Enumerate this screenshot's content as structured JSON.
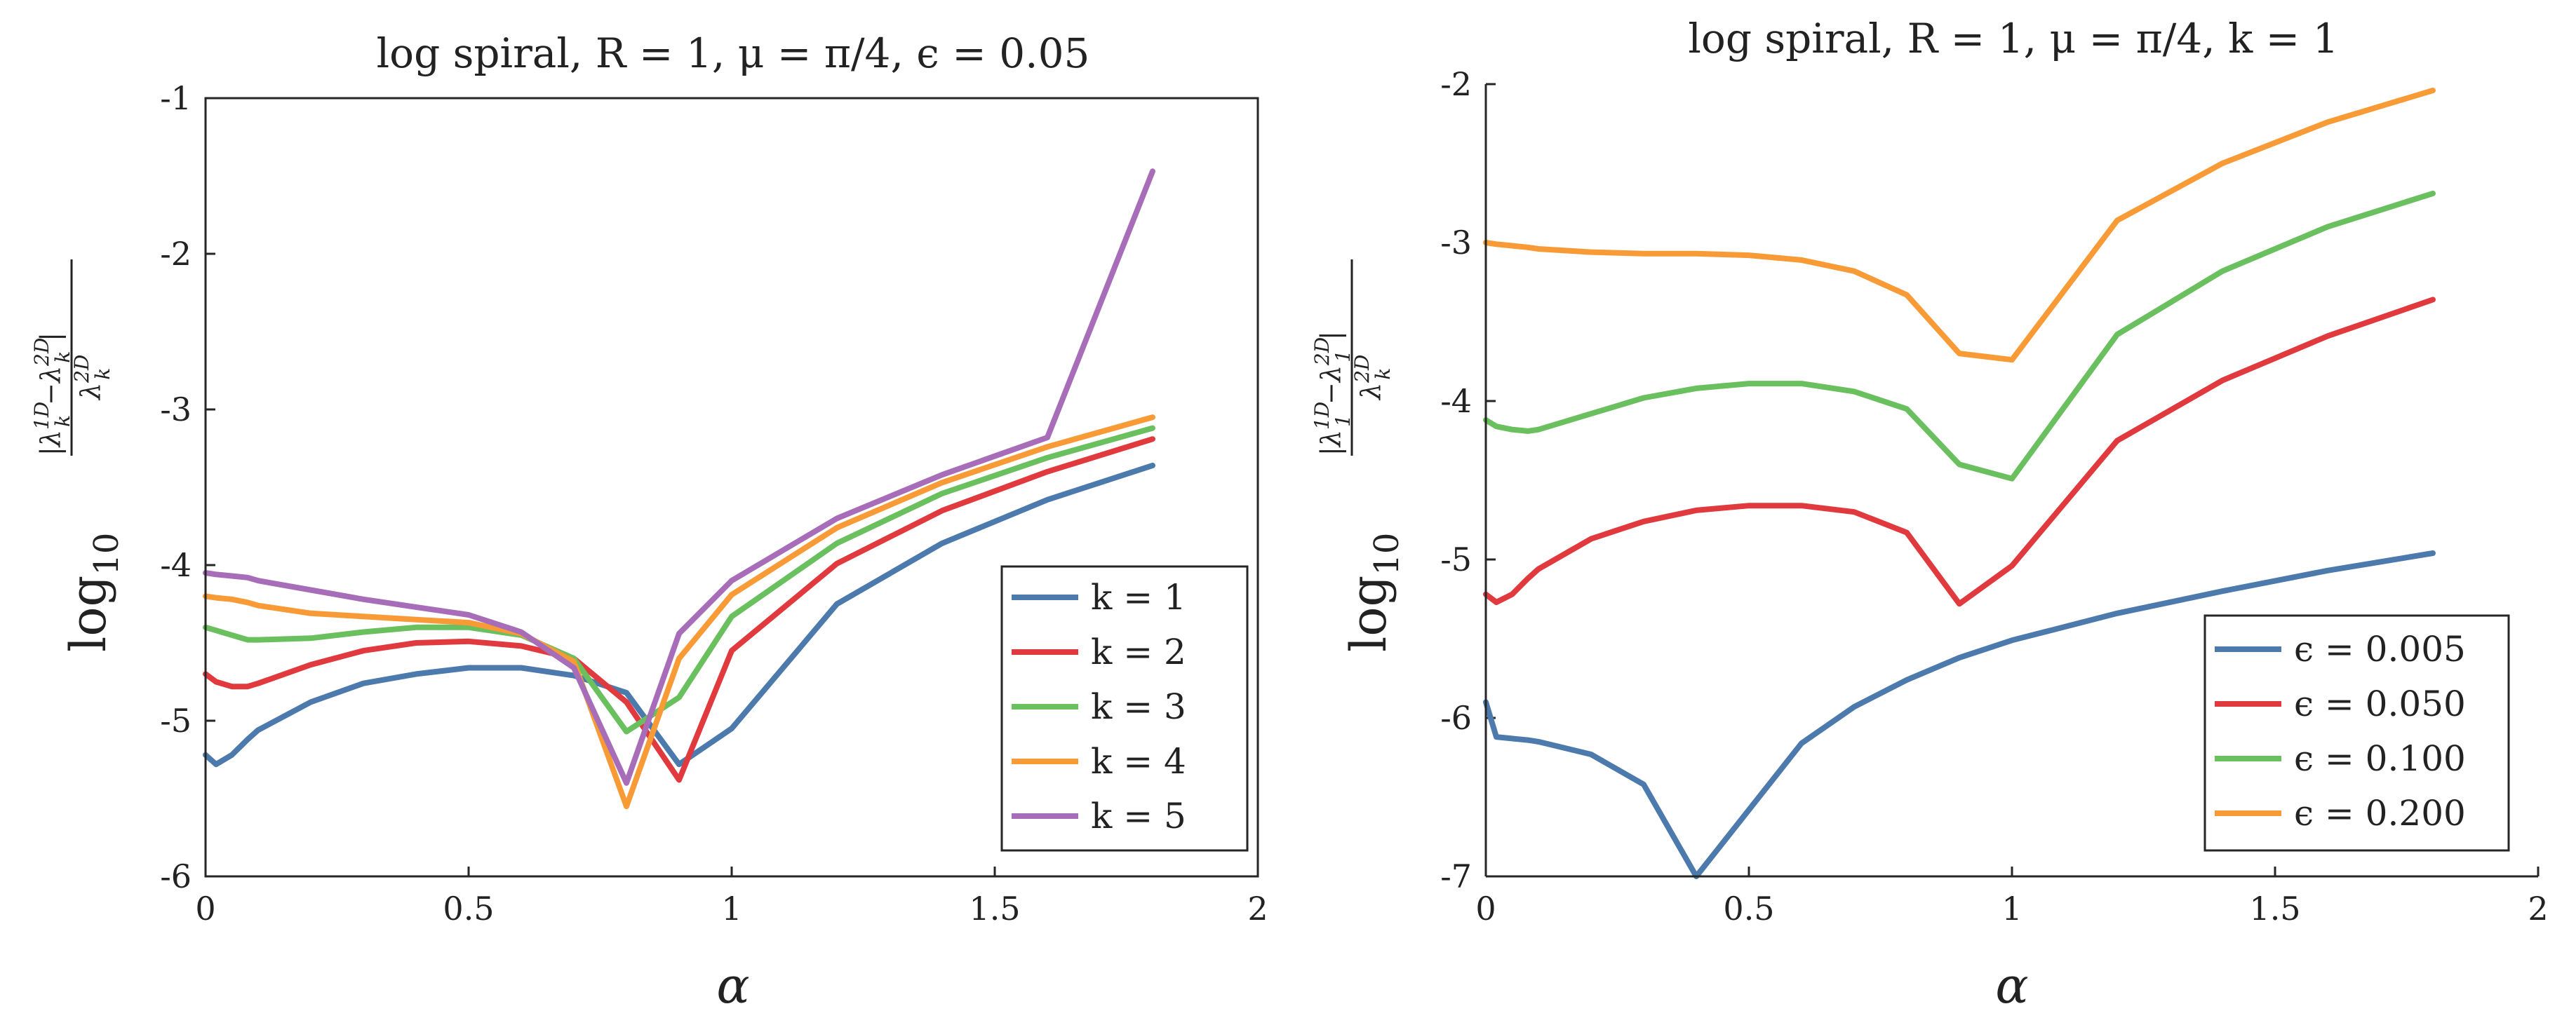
{
  "chart_data": [
    {
      "type": "line",
      "title": "log spiral, R = 1, μ = π/4, ϵ = 0.05",
      "xlabel": "α",
      "ylabel": "log10 |λk1D − λk2D| / λk2D",
      "xlim": [
        0,
        2
      ],
      "ylim": [
        -6,
        -1
      ],
      "xticks": [
        "0",
        "0.5",
        "1",
        "1.5",
        "2"
      ],
      "yticks": [
        "-6",
        "-5",
        "-4",
        "-3",
        "-2",
        "-1"
      ],
      "legend_position": "bottom-right",
      "x": [
        0,
        0.02,
        0.05,
        0.08,
        0.1,
        0.2,
        0.3,
        0.4,
        0.5,
        0.6,
        0.7,
        0.8,
        0.9,
        1.0,
        1.2,
        1.4,
        1.6,
        1.8
      ],
      "series": [
        {
          "name": "k = 1",
          "color": "#4c7aad",
          "values": [
            -5.22,
            -5.28,
            -5.22,
            -5.12,
            -5.06,
            -4.88,
            -4.76,
            -4.7,
            -4.66,
            -4.66,
            -4.71,
            -4.82,
            -5.28,
            -5.05,
            -4.25,
            -3.86,
            -3.58,
            -3.36
          ]
        },
        {
          "name": "k = 2",
          "color": "#e0393e",
          "values": [
            -4.7,
            -4.75,
            -4.78,
            -4.78,
            -4.76,
            -4.64,
            -4.55,
            -4.5,
            -4.49,
            -4.52,
            -4.6,
            -4.88,
            -5.38,
            -4.55,
            -3.99,
            -3.65,
            -3.4,
            -3.19
          ]
        },
        {
          "name": "k = 3",
          "color": "#6abf5e",
          "values": [
            -4.4,
            -4.42,
            -4.45,
            -4.48,
            -4.48,
            -4.47,
            -4.43,
            -4.4,
            -4.4,
            -4.45,
            -4.6,
            -5.07,
            -4.85,
            -4.33,
            -3.86,
            -3.54,
            -3.31,
            -3.12
          ]
        },
        {
          "name": "k = 4",
          "color": "#f89b36",
          "values": [
            -4.2,
            -4.21,
            -4.22,
            -4.24,
            -4.26,
            -4.31,
            -4.33,
            -4.35,
            -4.37,
            -4.44,
            -4.62,
            -5.55,
            -4.6,
            -4.19,
            -3.76,
            -3.47,
            -3.24,
            -3.05
          ]
        },
        {
          "name": "k = 5",
          "color": "#a86db8",
          "values": [
            -4.05,
            -4.06,
            -4.07,
            -4.08,
            -4.1,
            -4.16,
            -4.22,
            -4.27,
            -4.32,
            -4.43,
            -4.66,
            -5.4,
            -4.44,
            -4.1,
            -3.7,
            -3.42,
            -3.18,
            -1.47
          ]
        }
      ]
    },
    {
      "type": "line",
      "title": "log spiral, R = 1, μ = π/4, k = 1",
      "xlabel": "α",
      "ylabel": "log10 |λ11D − λ12D| / λk2D",
      "xlim": [
        0,
        2
      ],
      "ylim": [
        -7,
        -2
      ],
      "xticks": [
        "0",
        "0.5",
        "1",
        "1.5",
        "2"
      ],
      "yticks": [
        "-7",
        "-6",
        "-5",
        "-4",
        "-3",
        "-2"
      ],
      "legend_position": "bottom-right",
      "x": [
        0,
        0.02,
        0.05,
        0.08,
        0.1,
        0.2,
        0.3,
        0.4,
        0.5,
        0.6,
        0.7,
        0.8,
        0.9,
        1.0,
        1.2,
        1.4,
        1.6,
        1.8
      ],
      "series": [
        {
          "name": "ϵ = 0.005",
          "color": "#4c7aad",
          "values": [
            -5.9,
            -6.12,
            -6.13,
            -6.14,
            -6.15,
            -6.23,
            -6.42,
            -7.0,
            -6.58,
            -6.16,
            -5.93,
            -5.76,
            -5.62,
            -5.51,
            -5.34,
            -5.2,
            -5.07,
            -4.96
          ]
        },
        {
          "name": "ϵ = 0.050",
          "color": "#e0393e",
          "values": [
            -5.22,
            -5.27,
            -5.22,
            -5.12,
            -5.06,
            -4.87,
            -4.76,
            -4.69,
            -4.66,
            -4.66,
            -4.7,
            -4.83,
            -5.28,
            -5.04,
            -4.25,
            -3.87,
            -3.59,
            -3.36
          ]
        },
        {
          "name": "ϵ = 0.100",
          "color": "#6abf5e",
          "values": [
            -4.12,
            -4.16,
            -4.18,
            -4.19,
            -4.18,
            -4.08,
            -3.98,
            -3.92,
            -3.89,
            -3.89,
            -3.94,
            -4.05,
            -4.4,
            -4.49,
            -3.58,
            -3.18,
            -2.9,
            -2.69
          ]
        },
        {
          "name": "ϵ = 0.200",
          "color": "#f89b36",
          "values": [
            -3.0,
            -3.01,
            -3.02,
            -3.03,
            -3.04,
            -3.06,
            -3.07,
            -3.07,
            -3.08,
            -3.11,
            -3.18,
            -3.33,
            -3.7,
            -3.74,
            -2.86,
            -2.5,
            -2.24,
            -2.04
          ]
        }
      ]
    }
  ]
}
